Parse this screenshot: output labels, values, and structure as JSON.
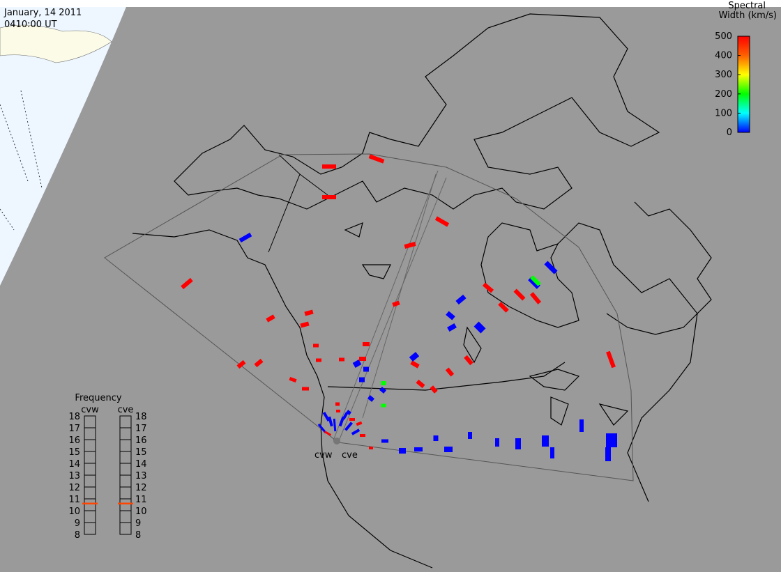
{
  "header": {
    "date": "January, 14 2011",
    "time": "0410:00 UT"
  },
  "colorbar": {
    "title_line1": "Spectral",
    "title_line2": "Width (km/s)",
    "lim": [
      0,
      500
    ],
    "ticks": [
      0,
      100,
      200,
      300,
      400,
      500
    ]
  },
  "frequency": {
    "title": "Frequency",
    "lim": [
      8,
      18
    ],
    "ticks": [
      8,
      9,
      10,
      11,
      12,
      13,
      14,
      15,
      16,
      17,
      18
    ],
    "radars": [
      {
        "name": "cvw",
        "value": 10.6
      },
      {
        "name": "cve",
        "value": 10.6
      }
    ]
  },
  "echoes": [
    500,
    500,
    500,
    500,
    500,
    500,
    0,
    500,
    500,
    500,
    500,
    500,
    500,
    500,
    500,
    500,
    500,
    500,
    500,
    500,
    500,
    500,
    500,
    500,
    500,
    500,
    500,
    500,
    500,
    500,
    500,
    0,
    0,
    0,
    0,
    0,
    0,
    0,
    0,
    0,
    0,
    0,
    0,
    0,
    0,
    0,
    0,
    0,
    0,
    0,
    0,
    0,
    0,
    0,
    0,
    0,
    0,
    200,
    200,
    200,
    0,
    0,
    0,
    0,
    0,
    0,
    0,
    0,
    500,
    500,
    500,
    500,
    500,
    500
  ]
}
